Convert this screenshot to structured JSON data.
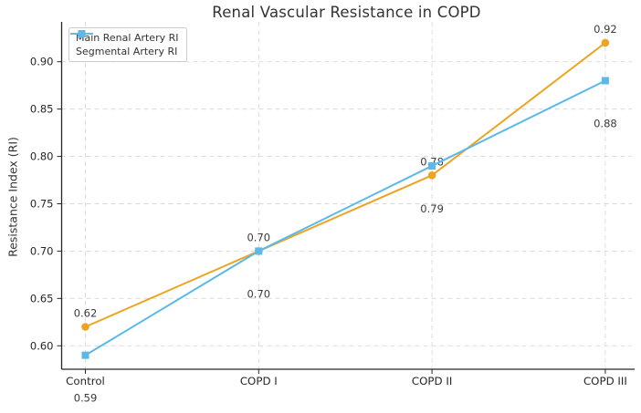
{
  "chart_data": {
    "type": "line",
    "title": "Renal Vascular Resistance in COPD",
    "ylabel": "Resistance Index (RI)",
    "xlabel": "",
    "categories": [
      "Control",
      "COPD I",
      "COPD II",
      "COPD III"
    ],
    "series": [
      {
        "name": "Main Renal Artery RI",
        "values": [
          0.62,
          0.7,
          0.78,
          0.92
        ],
        "labels": [
          "0.62",
          "0.70",
          "0.78",
          "0.92"
        ],
        "color": "#EDA420",
        "marker": "circle",
        "label_position": "above"
      },
      {
        "name": "Segmental Artery RI",
        "values": [
          0.59,
          0.7,
          0.79,
          0.88
        ],
        "labels": [
          "0.59",
          "0.70",
          "0.79",
          "0.88"
        ],
        "color": "#5AB9E8",
        "marker": "square",
        "label_position": "below"
      }
    ],
    "yticks": [
      0.6,
      0.65,
      0.7,
      0.75,
      0.8,
      0.85,
      0.9
    ],
    "ytick_labels": [
      "0.60",
      "0.65",
      "0.70",
      "0.75",
      "0.80",
      "0.85",
      "0.90"
    ],
    "ylim": [
      0.575,
      0.942
    ],
    "grid": true,
    "grid_style": "dashed",
    "legend_position": "upper-left",
    "colors": {
      "axis": "#262626",
      "grid": "#d9d9d9",
      "title_text": "#333333",
      "tick_label": "#262626",
      "annotation": "#3a3a3a"
    }
  }
}
